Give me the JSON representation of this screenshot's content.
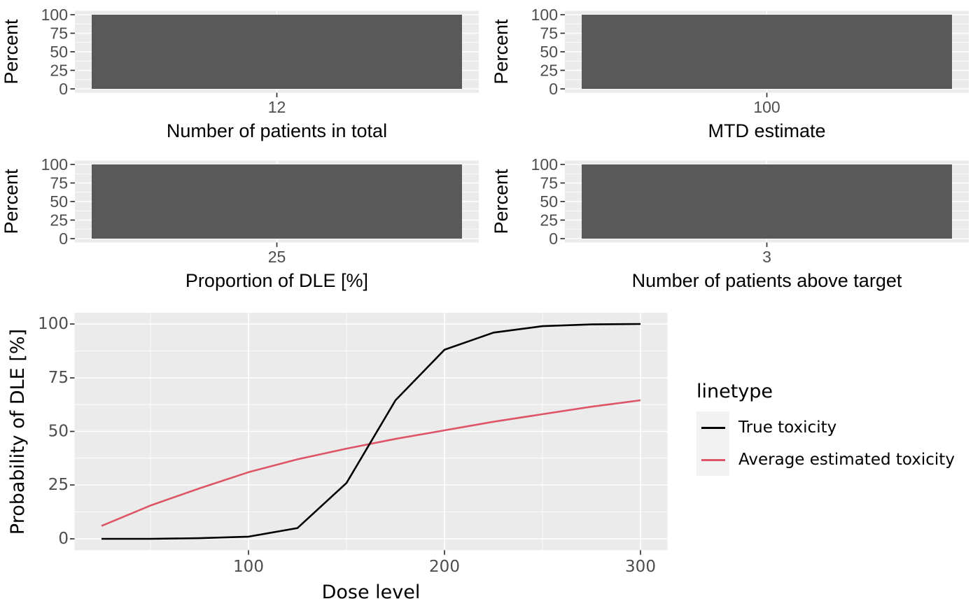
{
  "figure": {
    "background": "#FFFFFF",
    "panel_bg": "#EBEBEB",
    "grid_color": "#FFFFFF",
    "bar_fill": "#595959",
    "tick_label_color": "#4D4D4D",
    "axis_title_color": "#000000",
    "true_line_color": "#000000",
    "avg_line_color": "#DD5566"
  },
  "histograms": [
    {
      "ylabel": "Percent",
      "yticks": [
        "100",
        "75",
        "50",
        "25",
        "0"
      ],
      "xtick": "12",
      "xlabel": "Number of patients in total"
    },
    {
      "ylabel": "Percent",
      "yticks": [
        "100",
        "75",
        "50",
        "25",
        "0"
      ],
      "xtick": "100",
      "xlabel": "MTD estimate"
    },
    {
      "ylabel": "Percent",
      "yticks": [
        "100",
        "75",
        "50",
        "25",
        "0"
      ],
      "xtick": "25",
      "xlabel": "Proportion of DLE [%]"
    },
    {
      "ylabel": "Percent",
      "yticks": [
        "100",
        "75",
        "50",
        "25",
        "0"
      ],
      "xtick": "3",
      "xlabel": "Number of patients above target"
    }
  ],
  "line_chart": {
    "ylabel": "Probability of DLE [%]",
    "xlabel": "Dose level",
    "yticks": [
      "100",
      "75",
      "50",
      "25",
      "0"
    ],
    "xticks": [
      "100",
      "200",
      "300"
    ],
    "legend_title": "linetype",
    "legend": [
      {
        "label": "True toxicity",
        "color": "#000000"
      },
      {
        "label": "Average estimated toxicity",
        "color": "#DD5566"
      }
    ]
  },
  "chart_data": [
    {
      "type": "bar",
      "title": "",
      "categories": [
        "12"
      ],
      "values": [
        100
      ],
      "xlabel": "Number of patients in total",
      "ylabel": "Percent",
      "ylim": [
        0,
        100
      ],
      "grid": true
    },
    {
      "type": "bar",
      "title": "",
      "categories": [
        "100"
      ],
      "values": [
        100
      ],
      "xlabel": "MTD estimate",
      "ylabel": "Percent",
      "ylim": [
        0,
        100
      ],
      "grid": true
    },
    {
      "type": "bar",
      "title": "",
      "categories": [
        "25"
      ],
      "values": [
        100
      ],
      "xlabel": "Proportion of DLE [%]",
      "ylabel": "Percent",
      "ylim": [
        0,
        100
      ],
      "grid": true
    },
    {
      "type": "bar",
      "title": "",
      "categories": [
        "3"
      ],
      "values": [
        100
      ],
      "xlabel": "Number of patients above target",
      "ylabel": "Percent",
      "ylim": [
        0,
        100
      ],
      "grid": true
    },
    {
      "type": "line",
      "x": [
        25,
        50,
        75,
        100,
        125,
        150,
        175,
        200,
        225,
        250,
        275,
        300
      ],
      "series": [
        {
          "name": "True toxicity",
          "color": "#000000",
          "values": [
            0,
            0,
            0.3,
            1,
            5,
            26,
            64.5,
            88,
            96,
            99,
            99.8,
            100
          ]
        },
        {
          "name": "Average estimated toxicity",
          "color": "#DD5566",
          "values": [
            6,
            15.5,
            23.5,
            31,
            37,
            42,
            46.5,
            50.5,
            54.5,
            58,
            61.5,
            64.5
          ]
        }
      ],
      "xlabel": "Dose level",
      "ylabel": "Probability of DLE [%]",
      "xlim": [
        11,
        314
      ],
      "ylim": [
        -5,
        105
      ],
      "xticks": [
        100,
        200,
        300
      ],
      "yticks": [
        0,
        25,
        50,
        75,
        100
      ],
      "grid": true,
      "legend_title": "linetype",
      "legend_position": "right"
    }
  ]
}
